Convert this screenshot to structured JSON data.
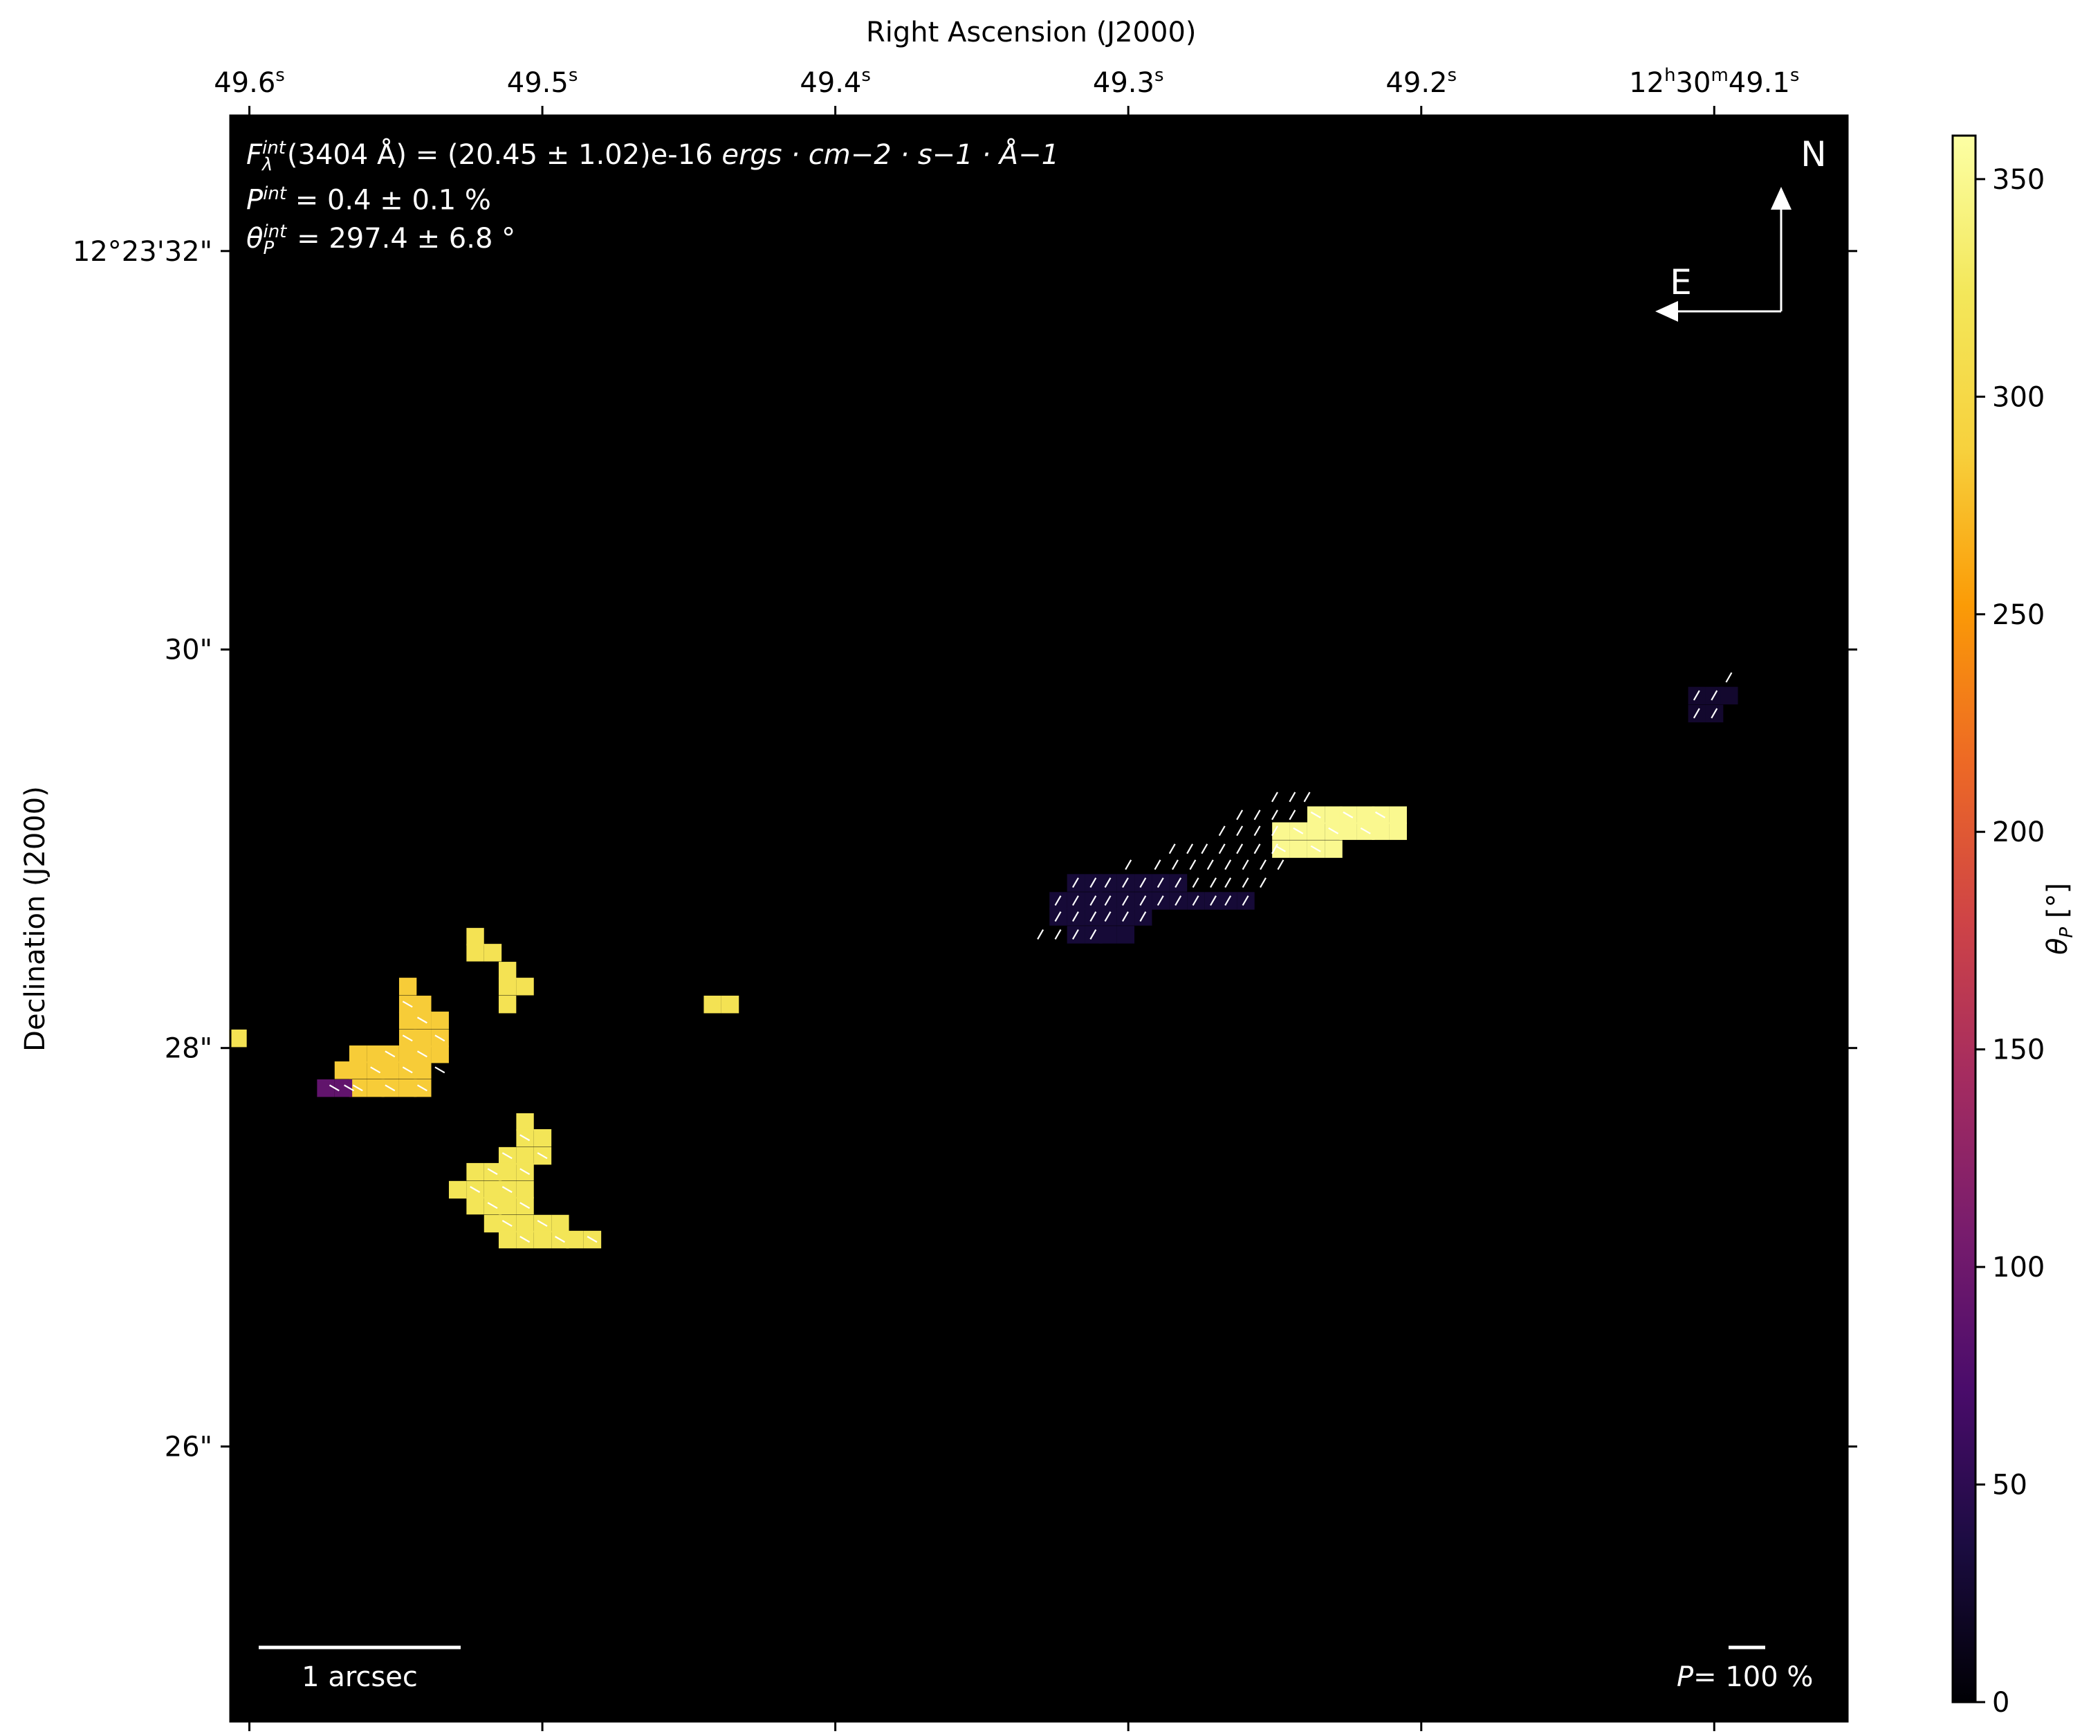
{
  "chart_data": {
    "type": "heatmap",
    "xlabel": "Right Ascension (J2000)",
    "ylabel": "Declination (J2000)",
    "x_ticks": [
      {
        "label": "49.6",
        "sup": "s",
        "prefix_sup": "",
        "value": 49.6
      },
      {
        "label": "49.5",
        "sup": "s",
        "prefix_sup": "",
        "value": 49.5
      },
      {
        "label": "49.4",
        "sup": "s",
        "prefix_sup": "",
        "value": 49.4
      },
      {
        "label": "49.3",
        "sup": "s",
        "prefix_sup": "",
        "value": 49.3
      },
      {
        "label": "49.2",
        "sup": "s",
        "prefix_sup": "",
        "value": 49.2
      },
      {
        "label": "12h30m49.1",
        "sup": "s",
        "prefix_sup": "",
        "value": 49.1
      }
    ],
    "y_ticks": [
      {
        "label": "12°23'32\"",
        "value": 32
      },
      {
        "label": "30\"",
        "value": 30
      },
      {
        "label": "28\"",
        "value": 28
      },
      {
        "label": "26\"",
        "value": 26
      }
    ],
    "xlim": [
      49.6065,
      49.0545
    ],
    "ylim": [
      24.62,
      32.68
    ],
    "colorbar": {
      "label": "θP [°]",
      "range": [
        0,
        360
      ],
      "ticks": [
        "0",
        "50",
        "100",
        "150",
        "200",
        "250",
        "300",
        "350"
      ],
      "tick_values": [
        0,
        50,
        100,
        150,
        200,
        250,
        300,
        350
      ],
      "colormap": "inferno"
    },
    "annotations": {
      "flux_prefix": "F",
      "flux_sup": "int",
      "flux_sub": "λ",
      "flux_text": "(3404 Å) = (20.45 ± 1.02)e-16",
      "flux_units": "ergs · cm−2 · s−1 · Å−1",
      "pol_prefix": "P",
      "pol_sup": "int",
      "pol_text": " = 0.4 ± 0.1 %",
      "angle_prefix": "θ",
      "angle_sub": "P",
      "angle_sup": "int",
      "angle_text": " = 297.4 ± 6.8 °"
    },
    "compass": {
      "north": "N",
      "east": "E"
    },
    "scalebar": {
      "label": "1 arcsec",
      "length_arcsec": 1
    },
    "pol_scale": {
      "prefix": "P",
      "label": "= 100 %",
      "value_percent": 100
    },
    "regions": [
      {
        "name": "orange-clump",
        "theta": 285,
        "cells": [
          [
            49.546,
            28.31
          ],
          [
            49.546,
            28.22
          ],
          [
            49.541,
            28.22
          ],
          [
            49.546,
            28.14
          ],
          [
            49.541,
            28.14
          ],
          [
            49.535,
            28.14
          ],
          [
            49.546,
            28.05
          ],
          [
            49.541,
            28.05
          ],
          [
            49.535,
            28.05
          ],
          [
            49.563,
            27.97
          ],
          [
            49.557,
            27.97
          ],
          [
            49.552,
            27.97
          ],
          [
            49.546,
            27.97
          ],
          [
            49.541,
            27.97
          ],
          [
            49.535,
            27.97
          ],
          [
            49.568,
            27.89
          ],
          [
            49.563,
            27.89
          ],
          [
            49.557,
            27.89
          ],
          [
            49.552,
            27.89
          ],
          [
            49.546,
            27.89
          ],
          [
            49.541,
            27.89
          ],
          [
            49.563,
            27.8
          ],
          [
            49.557,
            27.8
          ],
          [
            49.552,
            27.8
          ],
          [
            49.546,
            27.8
          ],
          [
            49.541,
            27.8
          ]
        ]
      },
      {
        "name": "violet-cell",
        "theta": 90,
        "cells": [
          [
            49.574,
            27.8
          ],
          [
            49.568,
            27.8
          ]
        ]
      },
      {
        "name": "gold-upper",
        "theta": 315,
        "cells": [
          [
            49.523,
            28.56
          ],
          [
            49.523,
            28.48
          ],
          [
            49.517,
            28.48
          ],
          [
            49.512,
            28.39
          ],
          [
            49.512,
            28.31
          ],
          [
            49.506,
            28.31
          ],
          [
            49.512,
            28.22
          ],
          [
            49.604,
            28.05
          ],
          [
            49.442,
            28.22
          ],
          [
            49.436,
            28.22
          ]
        ]
      },
      {
        "name": "gold-lower",
        "theta": 320,
        "cells": [
          [
            49.506,
            27.63
          ],
          [
            49.506,
            27.55
          ],
          [
            49.5,
            27.55
          ],
          [
            49.512,
            27.46
          ],
          [
            49.506,
            27.46
          ],
          [
            49.5,
            27.46
          ],
          [
            49.523,
            27.38
          ],
          [
            49.517,
            27.38
          ],
          [
            49.512,
            27.38
          ],
          [
            49.506,
            27.38
          ],
          [
            49.529,
            27.29
          ],
          [
            49.523,
            27.29
          ],
          [
            49.517,
            27.29
          ],
          [
            49.512,
            27.29
          ],
          [
            49.506,
            27.29
          ],
          [
            49.523,
            27.21
          ],
          [
            49.517,
            27.21
          ],
          [
            49.512,
            27.21
          ],
          [
            49.506,
            27.21
          ],
          [
            49.517,
            27.12
          ],
          [
            49.512,
            27.12
          ],
          [
            49.506,
            27.12
          ],
          [
            49.5,
            27.12
          ],
          [
            49.494,
            27.12
          ],
          [
            49.512,
            27.04
          ],
          [
            49.506,
            27.04
          ],
          [
            49.5,
            27.04
          ],
          [
            49.494,
            27.04
          ],
          [
            49.489,
            27.04
          ],
          [
            49.483,
            27.04
          ]
        ]
      },
      {
        "name": "pale-yellow",
        "theta": 350,
        "cells": [
          [
            49.236,
            29.17
          ],
          [
            49.23,
            29.17
          ],
          [
            49.225,
            29.17
          ],
          [
            49.219,
            29.17
          ],
          [
            49.214,
            29.17
          ],
          [
            49.208,
            29.17
          ],
          [
            49.248,
            29.09
          ],
          [
            49.242,
            29.09
          ],
          [
            49.236,
            29.09
          ],
          [
            49.23,
            29.09
          ],
          [
            49.225,
            29.09
          ],
          [
            49.219,
            29.09
          ],
          [
            49.214,
            29.09
          ],
          [
            49.208,
            29.09
          ],
          [
            49.248,
            29.0
          ],
          [
            49.242,
            29.0
          ],
          [
            49.236,
            29.0
          ],
          [
            49.23,
            29.0
          ]
        ]
      },
      {
        "name": "indigo-filament",
        "theta": 30,
        "cells": [
          [
            49.318,
            28.83
          ],
          [
            49.312,
            28.83
          ],
          [
            49.307,
            28.83
          ],
          [
            49.301,
            28.83
          ],
          [
            49.295,
            28.83
          ],
          [
            49.289,
            28.83
          ],
          [
            49.283,
            28.83
          ],
          [
            49.324,
            28.74
          ],
          [
            49.318,
            28.74
          ],
          [
            49.312,
            28.74
          ],
          [
            49.307,
            28.74
          ],
          [
            49.301,
            28.74
          ],
          [
            49.295,
            28.74
          ],
          [
            49.289,
            28.74
          ],
          [
            49.283,
            28.74
          ],
          [
            49.277,
            28.74
          ],
          [
            49.271,
            28.74
          ],
          [
            49.266,
            28.74
          ],
          [
            49.26,
            28.74
          ],
          [
            49.324,
            28.66
          ],
          [
            49.318,
            28.66
          ],
          [
            49.312,
            28.66
          ],
          [
            49.307,
            28.66
          ],
          [
            49.301,
            28.66
          ],
          [
            49.295,
            28.66
          ],
          [
            49.318,
            28.57
          ],
          [
            49.312,
            28.57
          ],
          [
            49.307,
            28.57
          ],
          [
            49.301,
            28.57
          ]
        ]
      },
      {
        "name": "indigo-east",
        "theta": 25,
        "cells": [
          [
            49.106,
            29.77
          ],
          [
            49.1,
            29.77
          ],
          [
            49.095,
            29.77
          ],
          [
            49.106,
            29.68
          ],
          [
            49.1,
            29.68
          ]
        ]
      }
    ],
    "vector_groups": [
      {
        "name": "filament-vectors",
        "angle_deg": 30,
        "points": [
          [
            49.25,
            29.26
          ],
          [
            49.244,
            29.26
          ],
          [
            49.239,
            29.26
          ],
          [
            49.262,
            29.17
          ],
          [
            49.256,
            29.17
          ],
          [
            49.25,
            29.17
          ],
          [
            49.244,
            29.17
          ],
          [
            49.268,
            29.09
          ],
          [
            49.262,
            29.09
          ],
          [
            49.256,
            29.09
          ],
          [
            49.25,
            29.09
          ],
          [
            49.285,
            29.0
          ],
          [
            49.279,
            29.0
          ],
          [
            49.274,
            29.0
          ],
          [
            49.268,
            29.0
          ],
          [
            49.262,
            29.0
          ],
          [
            49.256,
            29.0
          ],
          [
            49.25,
            29.0
          ],
          [
            49.3,
            28.92
          ],
          [
            49.29,
            28.92
          ],
          [
            49.284,
            28.92
          ],
          [
            49.278,
            28.92
          ],
          [
            49.272,
            28.92
          ],
          [
            49.266,
            28.92
          ],
          [
            49.26,
            28.92
          ],
          [
            49.254,
            28.92
          ],
          [
            49.248,
            28.92
          ],
          [
            49.318,
            28.83
          ],
          [
            49.312,
            28.83
          ],
          [
            49.307,
            28.83
          ],
          [
            49.301,
            28.83
          ],
          [
            49.295,
            28.83
          ],
          [
            49.289,
            28.83
          ],
          [
            49.283,
            28.83
          ],
          [
            49.277,
            28.83
          ],
          [
            49.271,
            28.83
          ],
          [
            49.266,
            28.83
          ],
          [
            49.26,
            28.83
          ],
          [
            49.254,
            28.83
          ],
          [
            49.324,
            28.74
          ],
          [
            49.318,
            28.74
          ],
          [
            49.312,
            28.74
          ],
          [
            49.307,
            28.74
          ],
          [
            49.301,
            28.74
          ],
          [
            49.295,
            28.74
          ],
          [
            49.289,
            28.74
          ],
          [
            49.283,
            28.74
          ],
          [
            49.277,
            28.74
          ],
          [
            49.271,
            28.74
          ],
          [
            49.266,
            28.74
          ],
          [
            49.26,
            28.74
          ],
          [
            49.324,
            28.66
          ],
          [
            49.318,
            28.66
          ],
          [
            49.312,
            28.66
          ],
          [
            49.307,
            28.66
          ],
          [
            49.301,
            28.66
          ],
          [
            49.295,
            28.66
          ],
          [
            49.33,
            28.57
          ],
          [
            49.324,
            28.57
          ],
          [
            49.318,
            28.57
          ],
          [
            49.312,
            28.57
          ],
          [
            49.106,
            29.77
          ],
          [
            49.1,
            29.77
          ],
          [
            49.095,
            29.86
          ],
          [
            49.106,
            29.68
          ],
          [
            49.1,
            29.68
          ]
        ]
      },
      {
        "name": "clump-vectors",
        "angle_deg": 300,
        "points": [
          [
            49.546,
            28.22
          ],
          [
            49.541,
            28.14
          ],
          [
            49.546,
            28.05
          ],
          [
            49.535,
            28.05
          ],
          [
            49.552,
            27.97
          ],
          [
            49.541,
            27.97
          ],
          [
            49.557,
            27.89
          ],
          [
            49.546,
            27.89
          ],
          [
            49.535,
            27.89
          ],
          [
            49.563,
            27.8
          ],
          [
            49.552,
            27.8
          ],
          [
            49.541,
            27.8
          ],
          [
            49.571,
            27.8
          ],
          [
            49.566,
            27.8
          ],
          [
            49.506,
            27.55
          ],
          [
            49.512,
            27.46
          ],
          [
            49.5,
            27.46
          ],
          [
            49.517,
            27.38
          ],
          [
            49.506,
            27.38
          ],
          [
            49.523,
            27.29
          ],
          [
            49.512,
            27.29
          ],
          [
            49.517,
            27.21
          ],
          [
            49.506,
            27.21
          ],
          [
            49.512,
            27.12
          ],
          [
            49.5,
            27.12
          ],
          [
            49.506,
            27.04
          ],
          [
            49.494,
            27.04
          ],
          [
            49.483,
            27.04
          ],
          [
            49.236,
            29.17
          ],
          [
            49.225,
            29.17
          ],
          [
            49.214,
            29.17
          ],
          [
            49.242,
            29.09
          ],
          [
            49.23,
            29.09
          ],
          [
            49.219,
            29.09
          ],
          [
            49.248,
            29.0
          ],
          [
            49.236,
            29.0
          ]
        ]
      }
    ]
  }
}
